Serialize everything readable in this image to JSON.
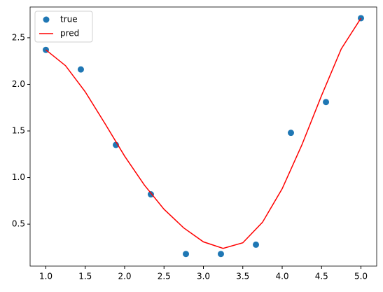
{
  "chart_data": {
    "type": "scatter",
    "series": [
      {
        "name": "true",
        "kind": "scatter",
        "color": "#1f77b4",
        "x": [
          1.0,
          1.444,
          1.889,
          2.333,
          2.778,
          3.222,
          3.667,
          4.111,
          4.556,
          5.0
        ],
        "values": [
          2.37,
          2.16,
          1.35,
          0.82,
          0.18,
          0.18,
          0.28,
          1.48,
          1.81,
          2.71
        ]
      },
      {
        "name": "pred",
        "kind": "line",
        "color": "#ff0000",
        "x": [
          1.0,
          1.25,
          1.5,
          1.75,
          2.0,
          2.25,
          2.5,
          2.75,
          3.0,
          3.25,
          3.5,
          3.75,
          4.0,
          4.25,
          4.5,
          4.75,
          5.0
        ],
        "values": [
          2.37,
          2.2,
          1.92,
          1.58,
          1.23,
          0.92,
          0.66,
          0.46,
          0.31,
          0.24,
          0.3,
          0.52,
          0.88,
          1.35,
          1.88,
          2.38,
          2.71
        ]
      }
    ],
    "xlim": [
      0.8,
      5.2
    ],
    "xticks": [
      {
        "value": 1,
        "label": "1.0"
      },
      1.5,
      {
        "value": 2,
        "label": "2.0"
      },
      2.5,
      {
        "value": 3,
        "label": "3.0"
      },
      3.5,
      {
        "value": 4,
        "label": "4.0"
      },
      4.5,
      {
        "value": 5,
        "label": "5.0"
      }
    ],
    "ylim": [
      0.05,
      2.83
    ],
    "yticks": [
      0.5,
      {
        "value": 1,
        "label": "1.0"
      },
      1.5,
      {
        "value": 2,
        "label": "2.0"
      },
      2.5
    ],
    "legend": "upper left"
  }
}
